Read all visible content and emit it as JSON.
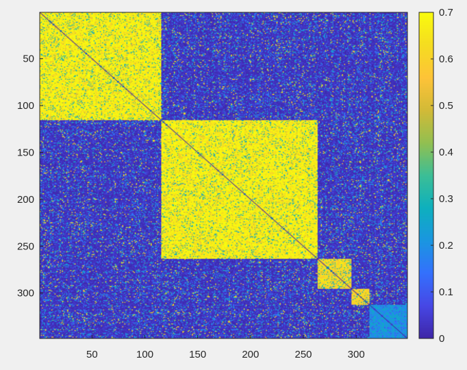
{
  "chart_data": {
    "type": "heatmap",
    "title": "",
    "xlabel": "",
    "ylabel": "",
    "n": 348,
    "x_ticks": [
      50,
      100,
      150,
      200,
      250,
      300
    ],
    "y_ticks": [
      50,
      100,
      150,
      200,
      250,
      300
    ],
    "colorbar": {
      "min": 0,
      "max": 0.7,
      "ticks": [
        "0",
        "0.1",
        "0.2",
        "0.3",
        "0.4",
        "0.5",
        "0.6",
        "0.7"
      ],
      "colormap": "parula"
    },
    "blocks": [
      {
        "start": 1,
        "end": 115,
        "within": 0.68
      },
      {
        "start": 116,
        "end": 263,
        "within": 0.68
      },
      {
        "start": 264,
        "end": 295,
        "within": 0.62
      },
      {
        "start": 296,
        "end": 312,
        "within": 0.6
      },
      {
        "start": 313,
        "end": 348,
        "within": 0.22
      }
    ],
    "between_blocks": 0.05,
    "diagonal": 0.0
  }
}
